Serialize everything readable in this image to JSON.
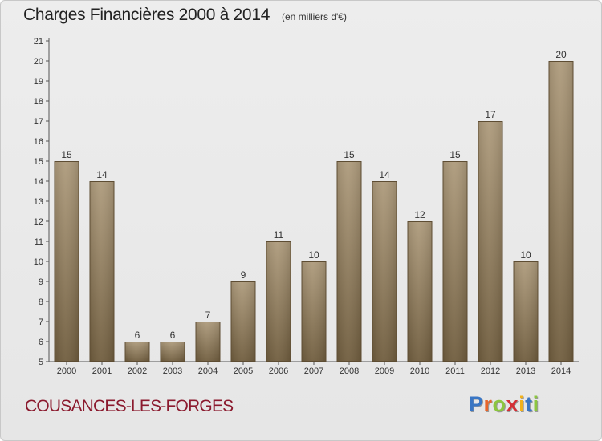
{
  "header": {
    "title": "Charges Financières 2000 à 2014",
    "subtitle": "(en milliers d'€)"
  },
  "footer": {
    "place": "COUSANCES-LES-FORGES",
    "logo_letters": [
      "P",
      "r",
      "o",
      "x",
      "i",
      "t",
      "i"
    ],
    "logo_colors": [
      "#3a76c4",
      "#e8652a",
      "#8cc63f",
      "#d42f36",
      "#f2b21c",
      "#3a76c4",
      "#8cc63f"
    ]
  },
  "chart_data": {
    "type": "bar",
    "categories": [
      "2000",
      "2001",
      "2002",
      "2003",
      "2004",
      "2005",
      "2006",
      "2007",
      "2008",
      "2009",
      "2010",
      "2011",
      "2012",
      "2013",
      "2014"
    ],
    "values": [
      15,
      14,
      6,
      6,
      7,
      9,
      11,
      10,
      15,
      14,
      12,
      15,
      17,
      10,
      20
    ],
    "data_labels": [
      "15",
      "14",
      "6",
      "6",
      "7",
      "9",
      "11",
      "10",
      "15",
      "14",
      "12",
      "15",
      "17",
      "10",
      "20"
    ],
    "yticks": [
      5,
      6,
      7,
      8,
      9,
      10,
      11,
      12,
      13,
      14,
      15,
      16,
      17,
      18,
      19,
      20,
      21
    ],
    "ylim": [
      5,
      21
    ],
    "grid": false,
    "bar_color": "#8d7858"
  }
}
